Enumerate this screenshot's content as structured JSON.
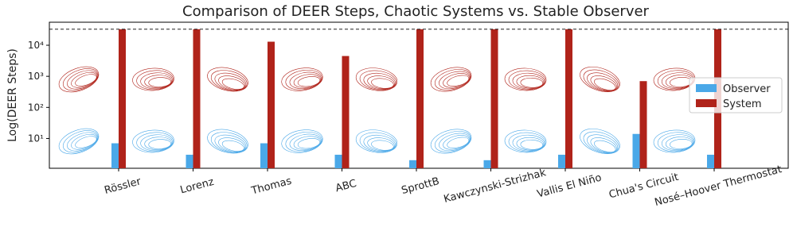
{
  "chart_data": {
    "type": "bar",
    "title": "Comparison of DEER Steps, Chaotic Systems vs. Stable Observer",
    "y_label": "Log(DEER Steps)",
    "categories": [
      "Rössler",
      "Lorenz",
      "Thomas",
      "ABC",
      "SprottB",
      "Kawczynski-Strizhak",
      "Vallis El Niño",
      "Chua's Circuit",
      "Nosé–Hoover Thermostat"
    ],
    "series": [
      {
        "name": "Observer",
        "color": "#4aa8e8",
        "values": [
          7,
          3,
          7,
          3,
          2,
          2,
          3,
          14,
          3
        ]
      },
      {
        "name": "System",
        "color": "#b0231a",
        "values": [
          32768,
          32768,
          13000,
          4500,
          32768,
          32768,
          32768,
          700,
          32768
        ]
      }
    ],
    "log_scale": true,
    "ylim": [
      1.1,
      55000
    ],
    "yticks": [
      {
        "value": 10,
        "label": "10¹"
      },
      {
        "value": 100,
        "label": "10²"
      },
      {
        "value": 1000,
        "label": "10³"
      },
      {
        "value": 10000,
        "label": "10⁴"
      }
    ],
    "hline": 32768,
    "legend": "center right"
  }
}
